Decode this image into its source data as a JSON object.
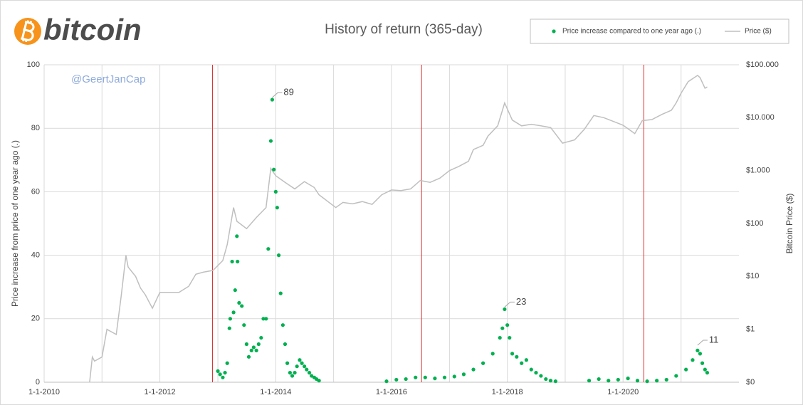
{
  "logo_text": "bitcoin",
  "chart_data": {
    "type": "combo",
    "title": "History of return  (365-day)",
    "watermark": "@GeertJanCap",
    "y_label": "Price increase from price of one year ago (.)",
    "y2_label": "Bitcoin Price ($)",
    "xlim": [
      "1-1-2010",
      "1-1-2022"
    ],
    "xticks": [
      "1-1-2010",
      {
        "value": "1-1-2011",
        "label": null
      },
      "1-1-2012",
      {
        "value": "1-1-2013",
        "label": null
      },
      "1-1-2014",
      {
        "value": "1-1-2015",
        "label": null
      },
      "1-1-2016",
      {
        "value": "1-1-2017",
        "label": null
      },
      "1-1-2018",
      {
        "value": "1-1-2019",
        "label": null
      },
      "1-1-2020",
      {
        "value": "1-1-2021",
        "label": null
      }
    ],
    "ylim": [
      0,
      100
    ],
    "yticks": [
      0,
      20,
      40,
      60,
      80,
      100
    ],
    "y2lim": [
      0.1,
      100000
    ],
    "y2_log": true,
    "y2ticks": [
      {
        "value": 0.1,
        "label": "$0"
      },
      {
        "value": 1,
        "label": "$1"
      },
      {
        "value": 10,
        "label": "$10"
      },
      {
        "value": 100,
        "label": "$100"
      },
      {
        "value": 1000,
        "label": "$1.000"
      },
      {
        "value": 10000,
        "label": "$10.000"
      },
      {
        "value": 100000,
        "label": "$100.000"
      }
    ],
    "grid": true,
    "legend": "top-right",
    "vlines": [
      "28-11-2012",
      "9-7-2016",
      "11-5-2020"
    ],
    "vline_color": "#e03030",
    "annotations": [
      {
        "x": "10-12-2013",
        "y": 89
      },
      {
        "x": "15-12-2017",
        "y": 23
      },
      {
        "x": "15-4-2021",
        "y": 11
      }
    ],
    "series": [
      {
        "name": "Price increase compared to one year ago (.)",
        "type": "scatter",
        "color": "#00b050",
        "x": [
          "1-1-2013",
          "15-1-2013",
          "1-2-2013",
          "15-2-2013",
          "1-3-2013",
          "15-3-2013",
          "20-3-2013",
          "1-4-2013",
          "10-4-2013",
          "20-4-2013",
          "1-5-2013",
          "5-5-2013",
          "15-5-2013",
          "1-6-2013",
          "15-6-2013",
          "1-7-2013",
          "15-7-2013",
          "1-8-2013",
          "15-8-2013",
          "1-9-2013",
          "15-9-2013",
          "1-10-2013",
          "15-10-2013",
          "1-11-2013",
          "15-11-2013",
          "1-12-2013",
          "10-12-2013",
          "20-12-2013",
          "1-1-2014",
          "10-1-2014",
          "20-1-2014",
          "1-2-2014",
          "15-2-2014",
          "1-3-2014",
          "15-3-2014",
          "1-4-2014",
          "15-4-2014",
          "1-5-2014",
          "15-5-2014",
          "1-6-2014",
          "15-6-2014",
          "1-7-2014",
          "15-7-2014",
          "1-8-2014",
          "15-8-2014",
          "1-9-2014",
          "15-9-2014",
          "1-10-2014",
          "1-12-2015",
          "1-2-2016",
          "1-4-2016",
          "1-6-2016",
          "1-8-2016",
          "1-10-2016",
          "1-12-2016",
          "1-2-2017",
          "1-4-2017",
          "1-6-2017",
          "1-8-2017",
          "1-10-2017",
          "15-11-2017",
          "1-12-2017",
          "15-12-2017",
          "1-1-2018",
          "15-1-2018",
          "1-2-2018",
          "1-3-2018",
          "1-4-2018",
          "1-5-2018",
          "1-6-2018",
          "1-7-2018",
          "1-8-2018",
          "1-9-2018",
          "1-10-2018",
          "1-11-2018",
          "1-6-2019",
          "1-8-2019",
          "1-10-2019",
          "1-12-2019",
          "1-2-2020",
          "1-4-2020",
          "1-6-2020",
          "1-8-2020",
          "1-10-2020",
          "1-12-2020",
          "1-2-2021",
          "15-3-2021",
          "15-4-2021",
          "1-5-2021",
          "15-5-2021",
          "1-6-2021",
          "15-6-2021"
        ],
        "values": [
          3.5,
          2.5,
          1.5,
          3,
          6,
          17,
          20,
          38,
          22,
          29,
          46,
          38,
          25,
          24,
          18,
          12,
          8,
          10,
          11,
          10,
          12,
          14,
          20,
          20,
          42,
          76,
          89,
          67,
          60,
          55,
          40,
          28,
          18,
          12,
          6,
          3,
          2,
          3,
          5,
          7,
          6,
          5,
          4,
          3,
          2,
          1.5,
          1,
          0.5,
          0.3,
          0.8,
          1,
          1.5,
          1.5,
          1.2,
          1.5,
          1.8,
          2.5,
          4,
          6,
          9,
          14,
          17,
          23,
          18,
          14,
          9,
          8,
          6,
          7,
          4,
          3,
          2,
          1,
          0.5,
          0.3,
          0.5,
          1,
          0.5,
          0.8,
          1.2,
          0.5,
          0.3,
          0.5,
          0.8,
          2,
          4,
          7,
          10,
          9,
          6,
          4,
          3
        ]
      },
      {
        "name": "Price ($)",
        "type": "line",
        "axis": "y2",
        "color": "#bfbfbf",
        "x": [
          "15-10-2010",
          "1-11-2010",
          "15-11-2010",
          "1-1-2011",
          "1-2-2011",
          "1-3-2011",
          "1-4-2011",
          "1-5-2011",
          "1-6-2011",
          "15-6-2011",
          "1-8-2011",
          "1-9-2011",
          "1-10-2011",
          "15-11-2011",
          "1-1-2012",
          "1-3-2012",
          "1-5-2012",
          "1-7-2012",
          "15-8-2012",
          "1-10-2012",
          "1-12-2012",
          "1-2-2013",
          "1-3-2013",
          "10-4-2013",
          "1-5-2013",
          "1-7-2013",
          "1-9-2013",
          "1-11-2013",
          "1-12-2013",
          "1-1-2014",
          "1-3-2014",
          "1-5-2014",
          "1-7-2014",
          "1-9-2014",
          "1-10-2014",
          "15-1-2015",
          "1-3-2015",
          "1-5-2015",
          "1-7-2015",
          "1-9-2015",
          "1-11-2015",
          "1-1-2016",
          "1-3-2016",
          "1-5-2016",
          "1-7-2016",
          "1-9-2016",
          "1-11-2016",
          "1-1-2017",
          "1-3-2017",
          "1-5-2017",
          "1-6-2017",
          "1-8-2017",
          "1-9-2017",
          "1-11-2017",
          "15-12-2017",
          "1-2-2018",
          "1-4-2018",
          "1-6-2018",
          "1-8-2018",
          "1-10-2018",
          "15-12-2018",
          "1-3-2019",
          "1-5-2019",
          "1-7-2019",
          "1-9-2019",
          "1-11-2019",
          "1-1-2020",
          "15-3-2020",
          "1-5-2020",
          "1-7-2020",
          "1-9-2020",
          "1-11-2020",
          "1-12-2020",
          "1-1-2021",
          "15-2-2021",
          "15-4-2021",
          "1-5-2021",
          "1-6-2021",
          "15-6-2021"
        ],
        "values": [
          0.1,
          0.3,
          0.25,
          0.3,
          1,
          0.9,
          0.8,
          4,
          25,
          15,
          10,
          6,
          4.5,
          2.5,
          5,
          5,
          5,
          6.5,
          11,
          12,
          13,
          20,
          40,
          200,
          110,
          80,
          130,
          200,
          1100,
          800,
          600,
          450,
          620,
          480,
          350,
          200,
          250,
          235,
          260,
          230,
          350,
          430,
          420,
          450,
          650,
          600,
          720,
          1000,
          1200,
          1500,
          2500,
          3000,
          4500,
          7000,
          19000,
          9000,
          7000,
          7500,
          7000,
          6500,
          3300,
          3800,
          6000,
          11000,
          10000,
          8500,
          7200,
          5000,
          8800,
          9200,
          11500,
          13800,
          19000,
          29000,
          48000,
          63000,
          57000,
          36000,
          38000
        ]
      }
    ]
  }
}
